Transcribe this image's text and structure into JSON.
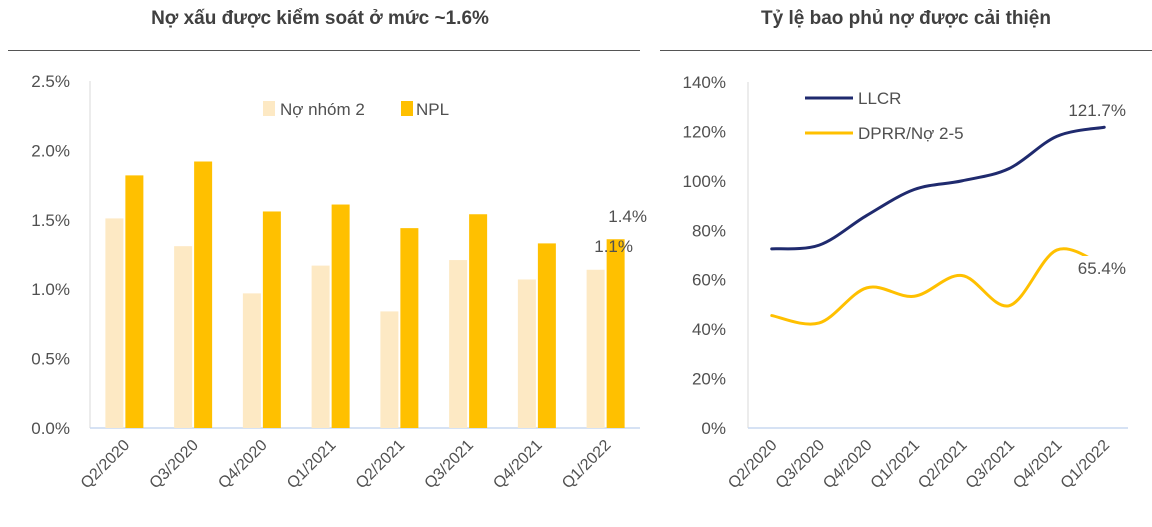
{
  "chart_data": [
    {
      "type": "bar",
      "title": "Nợ xấu được kiểm soát ở mức ~1.6%",
      "categories": [
        "Q2/2020",
        "Q3/2020",
        "Q4/2020",
        "Q1/2021",
        "Q2/2021",
        "Q3/2021",
        "Q4/2021",
        "Q1/2022"
      ],
      "series": [
        {
          "name": "Nợ nhóm 2",
          "color": "#FDE9C4",
          "values": [
            1.51,
            1.31,
            0.97,
            1.17,
            0.84,
            1.21,
            1.07,
            1.14
          ]
        },
        {
          "name": "NPL",
          "color": "#FFC000",
          "values": [
            1.82,
            1.92,
            1.56,
            1.61,
            1.44,
            1.54,
            1.33,
            1.36
          ]
        }
      ],
      "data_labels": [
        {
          "series": "NPL",
          "category": "Q1/2022",
          "text": "1.4%"
        },
        {
          "series": "Nợ nhóm 2",
          "category": "Q1/2022",
          "text": "1.1%"
        }
      ],
      "yticks": [
        "0.0%",
        "0.5%",
        "1.0%",
        "1.5%",
        "2.0%",
        "2.5%"
      ],
      "ylim": [
        0,
        2.5
      ],
      "grid": false,
      "legend": "top-center"
    },
    {
      "type": "line",
      "title": "Tỷ lệ bao phủ nợ được cải thiện",
      "categories": [
        "Q2/2020",
        "Q3/2020",
        "Q4/2020",
        "Q1/2021",
        "Q2/2021",
        "Q3/2021",
        "Q4/2021",
        "Q1/2022"
      ],
      "series": [
        {
          "name": "LLCR",
          "color": "#1F2A6E",
          "values": [
            72.5,
            74,
            86,
            96.5,
            100,
            105,
            118,
            121.7
          ]
        },
        {
          "name": "DPRR/Nợ 2-5",
          "color": "#FFC000",
          "values": [
            45.5,
            42.5,
            56.7,
            53.3,
            61.7,
            49.5,
            72,
            65.4
          ]
        }
      ],
      "data_labels": [
        {
          "series": "LLCR",
          "category": "Q1/2022",
          "text": "121.7%"
        },
        {
          "series": "DPRR/Nợ 2-5",
          "category": "Q1/2022",
          "text": "65.4%"
        }
      ],
      "yticks": [
        "0%",
        "20%",
        "40%",
        "60%",
        "80%",
        "100%",
        "120%",
        "140%"
      ],
      "ylim": [
        0,
        140
      ],
      "grid": false,
      "legend": "top-left"
    }
  ]
}
